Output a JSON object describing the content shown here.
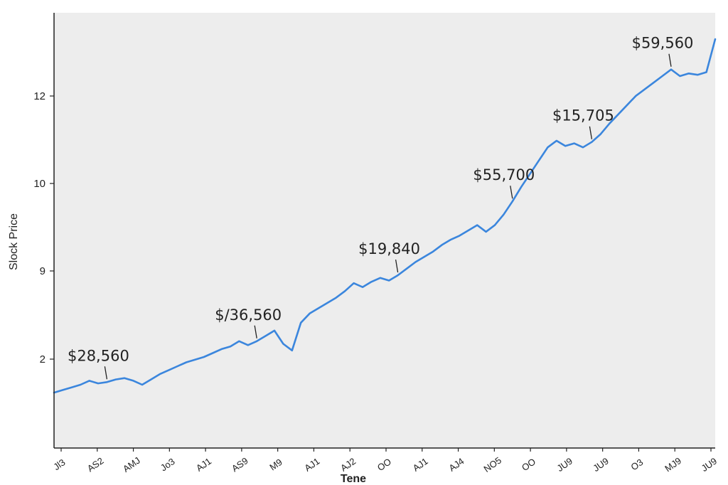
{
  "chart_data": {
    "type": "line",
    "xlabel": "Tene",
    "ylabel": "Slock Price",
    "x_tick_labels": [
      "Jl3",
      "AS2",
      "AMJ",
      "Jo3",
      "AJ1",
      "AS9",
      "M9",
      "AJ1",
      "AJ2",
      "OO",
      "AJ1",
      "AJ4",
      "NO5",
      "OO",
      "JU9",
      "JU9",
      "O3",
      "MJ9",
      "JU9"
    ],
    "y_ticks": [
      {
        "label": "2",
        "value": 2
      },
      {
        "label": "9",
        "value": 9
      },
      {
        "label": "10",
        "value": 10
      },
      {
        "label": "12",
        "value": 12
      }
    ],
    "series": [
      {
        "color": "#3b86dd",
        "x": [
          0,
          1,
          2,
          3,
          4,
          5,
          6,
          7,
          8,
          9,
          10,
          11,
          12,
          13,
          14,
          15,
          16,
          17,
          18,
          19,
          20,
          21,
          22,
          23,
          24,
          25,
          26,
          27,
          28,
          29,
          30,
          31,
          32,
          33,
          34,
          35,
          36,
          37,
          38,
          39,
          40,
          41,
          42,
          43,
          44,
          45,
          46,
          47,
          48,
          49,
          50,
          51,
          52,
          53,
          54,
          55,
          56,
          57,
          58,
          59,
          60,
          61,
          62,
          63,
          64,
          65,
          66,
          67,
          68,
          69,
          70,
          71,
          72,
          73,
          74,
          75
        ],
        "values": [
          0.6,
          0.7,
          0.8,
          0.9,
          1.05,
          0.95,
          1.0,
          1.1,
          1.15,
          1.05,
          0.9,
          1.1,
          1.3,
          1.45,
          1.6,
          1.75,
          1.85,
          1.95,
          2.1,
          2.25,
          2.35,
          2.55,
          2.4,
          2.55,
          2.75,
          2.95,
          2.45,
          2.2,
          3.25,
          3.6,
          3.8,
          4.0,
          4.2,
          4.45,
          4.75,
          4.6,
          4.8,
          4.95,
          4.85,
          5.05,
          5.3,
          5.55,
          5.75,
          5.95,
          6.2,
          6.4,
          6.55,
          6.75,
          6.95,
          6.7,
          6.95,
          7.35,
          7.85,
          8.4,
          8.9,
          9.4,
          9.9,
          10.15,
          9.95,
          10.05,
          9.9,
          10.1,
          10.4,
          10.8,
          11.15,
          11.5,
          11.85,
          12.1,
          12.35,
          12.6,
          12.85,
          12.6,
          12.7,
          12.65,
          12.75,
          14.0
        ]
      }
    ],
    "annotations": [
      {
        "text": "$28,560",
        "x": 6,
        "y": 1.0
      },
      {
        "text": "$/36,560",
        "x": 23,
        "y": 2.55
      },
      {
        "text": "$19,840",
        "x": 39,
        "y": 5.05
      },
      {
        "text": "$55,700",
        "x": 52,
        "y": 7.85
      },
      {
        "text": "$15,705",
        "x": 61,
        "y": 10.1
      },
      {
        "text": "$59,560",
        "x": 70,
        "y": 12.85
      }
    ],
    "ylim": [
      -1.5,
      15.0
    ],
    "xlim": [
      0,
      75
    ],
    "grid": false,
    "background": "#ededed",
    "axis_color": "#222222"
  }
}
